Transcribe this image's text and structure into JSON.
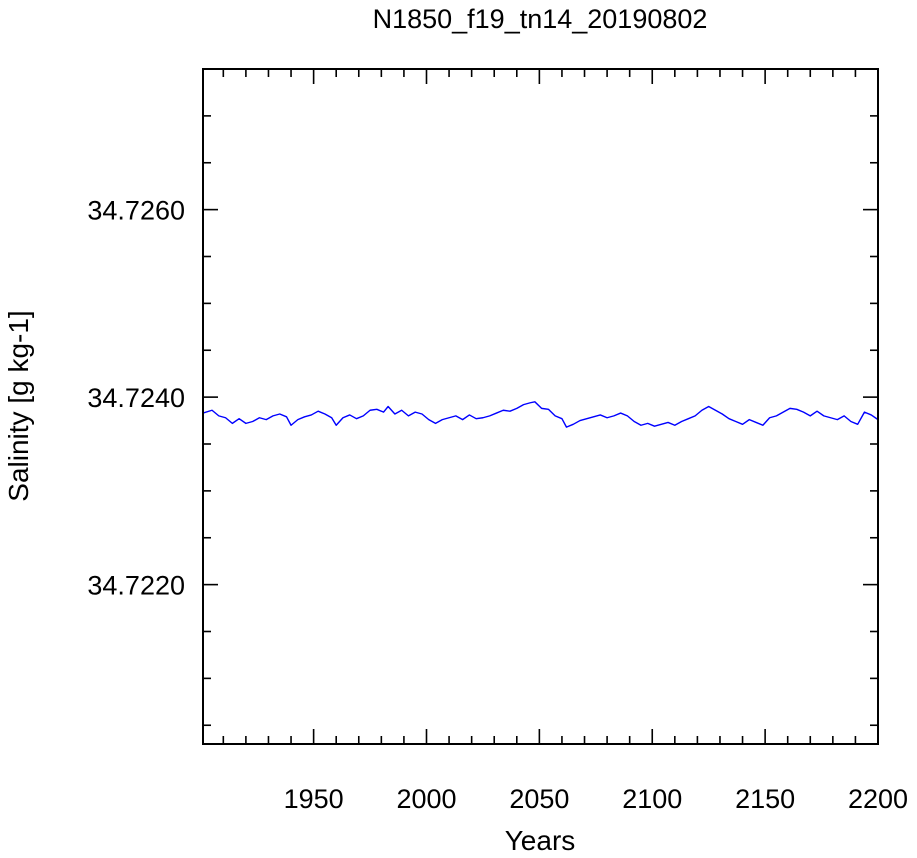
{
  "chart_data": {
    "type": "line",
    "title": "N1850_f19_tn14_20190802",
    "xlabel": "Years",
    "ylabel": "Salinity [g kg-1]",
    "xlim": [
      1901,
      2200
    ],
    "ylim": [
      34.7203,
      34.7275
    ],
    "x_major_ticks": [
      1950,
      2000,
      2050,
      2100,
      2150,
      2200
    ],
    "x_tick_labels": [
      "1950",
      "2000",
      "2050",
      "2100",
      "2150",
      "2200"
    ],
    "x_minor_step": 10,
    "y_major_ticks": [
      34.722,
      34.724,
      34.726
    ],
    "y_tick_labels": [
      "34.7220",
      "34.7240",
      "34.7260"
    ],
    "y_minor_step": 0.0005,
    "grid": false,
    "series": [
      {
        "color": "#0000ff",
        "x": [
          1901,
          1905,
          1908,
          1911,
          1914,
          1917,
          1920,
          1923,
          1926,
          1929,
          1932,
          1935,
          1938,
          1940,
          1943,
          1946,
          1949,
          1952,
          1955,
          1958,
          1960,
          1963,
          1966,
          1969,
          1972,
          1975,
          1978,
          1981,
          1983,
          1986,
          1989,
          1992,
          1995,
          1998,
          2001,
          2004,
          2007,
          2010,
          2013,
          2016,
          2019,
          2022,
          2025,
          2028,
          2031,
          2034,
          2037,
          2040,
          2043,
          2046,
          2048,
          2051,
          2054,
          2057,
          2060,
          2062,
          2065,
          2068,
          2071,
          2074,
          2077,
          2080,
          2083,
          2086,
          2089,
          2092,
          2095,
          2098,
          2101,
          2104,
          2107,
          2110,
          2113,
          2116,
          2119,
          2122,
          2125,
          2128,
          2131,
          2134,
          2137,
          2140,
          2143,
          2146,
          2149,
          2152,
          2155,
          2158,
          2161,
          2164,
          2167,
          2170,
          2173,
          2176,
          2179,
          2182,
          2185,
          2188,
          2191,
          2194,
          2197,
          2200
        ],
        "y": [
          34.72383,
          34.72386,
          34.7238,
          34.72378,
          34.72372,
          34.72377,
          34.72372,
          34.72374,
          34.72378,
          34.72376,
          34.7238,
          34.72382,
          34.72379,
          34.7237,
          34.72376,
          34.72379,
          34.72381,
          34.72385,
          34.72382,
          34.72378,
          34.7237,
          34.72378,
          34.72381,
          34.72377,
          34.7238,
          34.72386,
          34.72387,
          34.72384,
          34.7239,
          34.72382,
          34.72386,
          34.7238,
          34.72384,
          34.72382,
          34.72376,
          34.72372,
          34.72376,
          34.72378,
          34.7238,
          34.72376,
          34.72381,
          34.72377,
          34.72378,
          34.7238,
          34.72383,
          34.72386,
          34.72385,
          34.72388,
          34.72392,
          34.72394,
          34.72395,
          34.72388,
          34.72387,
          34.7238,
          34.72377,
          34.72368,
          34.72371,
          34.72375,
          34.72377,
          34.72379,
          34.72381,
          34.72378,
          34.7238,
          34.72383,
          34.7238,
          34.72374,
          34.7237,
          34.72372,
          34.72369,
          34.72371,
          34.72373,
          34.7237,
          34.72374,
          34.72377,
          34.7238,
          34.72386,
          34.7239,
          34.72386,
          34.72382,
          34.72377,
          34.72374,
          34.72371,
          34.72376,
          34.72373,
          34.7237,
          34.72378,
          34.7238,
          34.72384,
          34.72388,
          34.72387,
          34.72384,
          34.7238,
          34.72385,
          34.7238,
          34.72378,
          34.72376,
          34.7238,
          34.72374,
          34.72371,
          34.72384,
          34.72381,
          34.72376
        ]
      }
    ]
  }
}
